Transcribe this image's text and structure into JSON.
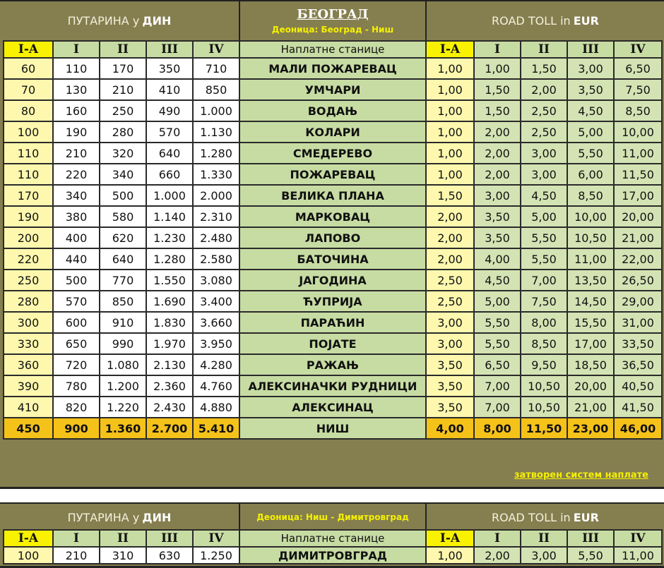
{
  "table1": {
    "din_title": "ПУТАРИНА у",
    "din_unit": "ДИН",
    "city": "БЕОГРАД",
    "section": "Деоница: Београд - Ниш",
    "eur_title": "ROAD TOLL in",
    "eur_unit": "EUR",
    "classes": [
      "I-A",
      "I",
      "II",
      "III",
      "IV"
    ],
    "stations_label": "Наплатне станице",
    "rows": [
      {
        "din": [
          "60",
          "110",
          "170",
          "350",
          "710"
        ],
        "station": "МАЛИ ПОЖАРЕВАЦ",
        "eur": [
          "1,00",
          "1,00",
          "1,50",
          "3,00",
          "6,50"
        ]
      },
      {
        "din": [
          "70",
          "130",
          "210",
          "410",
          "850"
        ],
        "station": "УМЧАРИ",
        "eur": [
          "1,00",
          "1,50",
          "2,00",
          "3,50",
          "7,50"
        ]
      },
      {
        "din": [
          "80",
          "160",
          "250",
          "490",
          "1.000"
        ],
        "station": "ВОДАЊ",
        "eur": [
          "1,00",
          "1,50",
          "2,50",
          "4,50",
          "8,50"
        ]
      },
      {
        "din": [
          "100",
          "190",
          "280",
          "570",
          "1.130"
        ],
        "station": "КОЛАРИ",
        "eur": [
          "1,00",
          "2,00",
          "2,50",
          "5,00",
          "10,00"
        ]
      },
      {
        "din": [
          "110",
          "210",
          "320",
          "640",
          "1.280"
        ],
        "station": "СМЕДЕРЕВО",
        "eur": [
          "1,00",
          "2,00",
          "3,00",
          "5,50",
          "11,00"
        ]
      },
      {
        "din": [
          "110",
          "220",
          "340",
          "660",
          "1.330"
        ],
        "station": "ПОЖАРЕВАЦ",
        "eur": [
          "1,00",
          "2,00",
          "3,00",
          "6,00",
          "11,50"
        ]
      },
      {
        "din": [
          "170",
          "340",
          "500",
          "1.000",
          "2.000"
        ],
        "station": "ВЕЛИКА ПЛАНА",
        "eur": [
          "1,50",
          "3,00",
          "4,50",
          "8,50",
          "17,00"
        ]
      },
      {
        "din": [
          "190",
          "380",
          "580",
          "1.140",
          "2.310"
        ],
        "station": "МАРКОВАЦ",
        "eur": [
          "2,00",
          "3,50",
          "5,00",
          "10,00",
          "20,00"
        ]
      },
      {
        "din": [
          "200",
          "400",
          "620",
          "1.230",
          "2.480"
        ],
        "station": "ЛАПОВО",
        "eur": [
          "2,00",
          "3,50",
          "5,50",
          "10,50",
          "21,00"
        ]
      },
      {
        "din": [
          "220",
          "440",
          "640",
          "1.280",
          "2.580"
        ],
        "station": "БАТОЧИНА",
        "eur": [
          "2,00",
          "4,00",
          "5,50",
          "11,00",
          "22,00"
        ]
      },
      {
        "din": [
          "250",
          "500",
          "770",
          "1.550",
          "3.080"
        ],
        "station": "ЈАГОДИНА",
        "eur": [
          "2,50",
          "4,50",
          "7,00",
          "13,50",
          "26,50"
        ]
      },
      {
        "din": [
          "280",
          "570",
          "850",
          "1.690",
          "3.400"
        ],
        "station": "ЋУПРИЈА",
        "eur": [
          "2,50",
          "5,00",
          "7,50",
          "14,50",
          "29,00"
        ]
      },
      {
        "din": [
          "300",
          "600",
          "910",
          "1.830",
          "3.660"
        ],
        "station": "ПАРАЋИН",
        "eur": [
          "3,00",
          "5,50",
          "8,00",
          "15,50",
          "31,00"
        ]
      },
      {
        "din": [
          "330",
          "650",
          "990",
          "1.970",
          "3.950"
        ],
        "station": "ПОЈАТЕ",
        "eur": [
          "3,00",
          "5,50",
          "8,50",
          "17,00",
          "33,50"
        ]
      },
      {
        "din": [
          "360",
          "720",
          "1.080",
          "2.130",
          "4.280"
        ],
        "station": "РАЖАЊ",
        "eur": [
          "3,50",
          "6,50",
          "9,50",
          "18,50",
          "36,50"
        ]
      },
      {
        "din": [
          "390",
          "780",
          "1.200",
          "2.360",
          "4.760"
        ],
        "station": "АЛЕКСИНАЧКИ РУДНИЦИ",
        "eur": [
          "3,50",
          "7,00",
          "10,50",
          "20,00",
          "40,50"
        ]
      },
      {
        "din": [
          "410",
          "820",
          "1.220",
          "2.430",
          "4.880"
        ],
        "station": "АЛЕКСИНАЦ",
        "eur": [
          "3,50",
          "7,00",
          "10,50",
          "21,00",
          "41,50"
        ]
      }
    ],
    "total": {
      "din": [
        "450",
        "900",
        "1.360",
        "2.700",
        "5.410"
      ],
      "station": "НИШ",
      "eur": [
        "4,00",
        "8,00",
        "11,50",
        "23,00",
        "46,00"
      ]
    },
    "note_link": "затворен систем наплате"
  },
  "table2": {
    "din_title": "ПУТАРИНА у",
    "din_unit": "ДИН",
    "section": "Деоница: Ниш - Димитровград",
    "eur_title": "ROAD TOLL in",
    "eur_unit": "EUR",
    "classes": [
      "I-A",
      "I",
      "II",
      "III",
      "IV"
    ],
    "stations_label": "Наплатне станице",
    "rows": [
      {
        "din": [
          "100",
          "210",
          "310",
          "630",
          "1.250"
        ],
        "station": "ДИМИТРОВГРАД",
        "eur": [
          "1,00",
          "2,00",
          "3,00",
          "5,50",
          "11,00"
        ]
      }
    ]
  },
  "colors": {
    "band": "#857e4f",
    "ia": "#fdf8ae",
    "green": "#c7dca3",
    "total": "#f5c21a",
    "header_ia": "#f8f200"
  }
}
